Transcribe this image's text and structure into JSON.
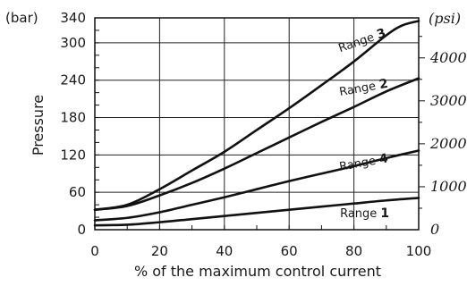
{
  "chart_data": {
    "type": "line",
    "xlabel": "% of the maximum control current",
    "ylabel": "Pressure",
    "left_unit": "(bar)",
    "right_unit": "(psi)",
    "xlim": [
      0,
      100
    ],
    "ylim": [
      0,
      340
    ],
    "x_ticks": [
      0,
      20,
      40,
      60,
      80,
      100
    ],
    "y_ticks": [
      0,
      60,
      120,
      180,
      240,
      300,
      340
    ],
    "psi_ticks": [
      0,
      1000,
      2000,
      3000,
      4000
    ],
    "psi_tick_labels": [
      "0",
      "1000",
      "2000",
      "3000",
      "4000"
    ],
    "grid": true,
    "series_label_prefix": "Range",
    "series": [
      {
        "name": "Range 3",
        "number": "3",
        "x": [
          0,
          10,
          20,
          30,
          40,
          50,
          60,
          70,
          80,
          90,
          95,
          100
        ],
        "y": [
          32,
          40,
          65,
          95,
          125,
          160,
          195,
          232,
          270,
          312,
          328,
          335
        ]
      },
      {
        "name": "Range 2",
        "number": "2",
        "x": [
          0,
          10,
          20,
          30,
          40,
          50,
          60,
          70,
          80,
          90,
          100
        ],
        "y": [
          32,
          38,
          55,
          75,
          98,
          123,
          148,
          173,
          197,
          222,
          243
        ]
      },
      {
        "name": "Range 4",
        "number": "4",
        "x": [
          0,
          10,
          20,
          30,
          40,
          50,
          60,
          70,
          80,
          90,
          100
        ],
        "y": [
          15,
          19,
          28,
          40,
          52,
          65,
          78,
          90,
          102,
          115,
          127
        ]
      },
      {
        "name": "Range 1",
        "number": "1",
        "x": [
          0,
          10,
          20,
          30,
          40,
          50,
          60,
          70,
          80,
          90,
          100
        ],
        "y": [
          7,
          8,
          12,
          17,
          22,
          27,
          32,
          37,
          42,
          47,
          51
        ]
      }
    ]
  }
}
